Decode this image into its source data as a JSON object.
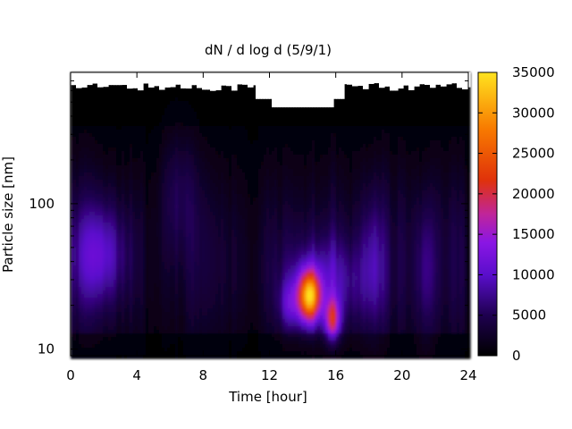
{
  "chart_data": {
    "type": "heatmap",
    "title": "dN / d log d (5/9/1)",
    "xlabel": "Time [hour]",
    "ylabel": "Particle size [nm]",
    "xlim": [
      0,
      24
    ],
    "x_ticks": [
      0,
      4,
      8,
      12,
      16,
      20,
      24
    ],
    "y_scale": "log",
    "ylim": [
      9,
      800
    ],
    "y_ticks": [
      10,
      100
    ],
    "colorbar": {
      "min": 0,
      "max": 35000,
      "ticks": [
        0,
        5000,
        10000,
        15000,
        20000,
        25000,
        30000,
        35000
      ],
      "palette": [
        "#000000",
        "#1e004f",
        "#5a0ecc",
        "#8a16e4",
        "#c0259a",
        "#e0320a",
        "#f87a00",
        "#ffe31f"
      ]
    },
    "no_data_above_nm": 500,
    "features": [
      {
        "name": "primary-peak",
        "time_hour": 14.4,
        "size_nm": 23,
        "value": 32000
      },
      {
        "name": "secondary-peak",
        "time_hour": 15.8,
        "size_nm": 17,
        "value": 22000
      },
      {
        "name": "early-band",
        "time_hour": 1.8,
        "size_nm": 45,
        "value": 12000
      }
    ]
  }
}
